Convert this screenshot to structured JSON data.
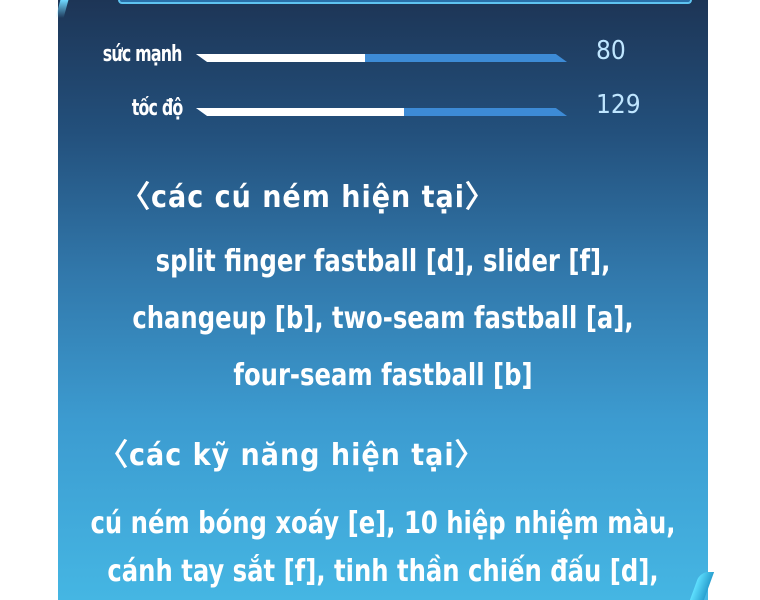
{
  "stats": [
    {
      "label": "sức mạnh",
      "value": "80",
      "fill": 0.455
    },
    {
      "label": "tốc độ",
      "value": "129",
      "fill": 0.56
    }
  ],
  "pitches": {
    "heading": "〈các cú ném hiện tại〉",
    "lines": [
      "split finger fastball [d], slider [f],",
      "changeup [b], two-seam fastball [a],",
      "four-seam fastball [b]"
    ]
  },
  "skills": {
    "heading": "〈các kỹ năng hiện tại〉",
    "lines": [
      "cú ném bóng xoáy [e], 10 hiệp nhiệm màu,",
      "cánh tay sắt [f],  tinh thần chiến đấu [d],"
    ]
  },
  "colors": {
    "bar_track": "#3d8bd6",
    "bar_fill": "#ffffff",
    "value_text": "#bfe6ff"
  }
}
